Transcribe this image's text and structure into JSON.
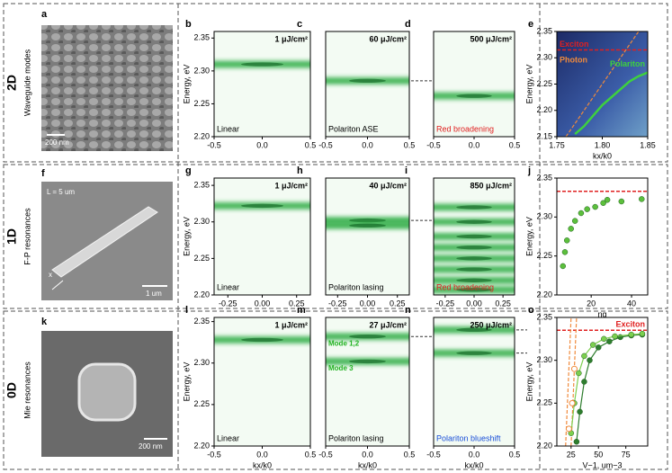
{
  "rows": [
    {
      "label": "2D",
      "subtitle": "Waveguide modes"
    },
    {
      "label": "1D",
      "subtitle": "F-P resonances"
    },
    {
      "label": "0D",
      "subtitle": "Mie resonances"
    }
  ],
  "images": [
    {
      "letter": "a",
      "scale_bar": "200 nm"
    },
    {
      "letter": "f",
      "note": "L = 5 um",
      "scale_bar": "1 um",
      "axis": "x"
    },
    {
      "letter": "k",
      "scale_bar": "200 nm"
    }
  ],
  "chart_data": [
    {
      "type": "heatmap",
      "letter": "b",
      "fluence": "1 μJ/cm²",
      "caption": "Linear",
      "caption_color": "#000",
      "ylabel": "Energy, eV",
      "xlim": [
        -0.5,
        0.5
      ],
      "ylim": [
        2.2,
        2.36
      ],
      "xticks": [
        -0.5,
        {
          "value": 0,
          "label": "0.0"
        },
        0.5
      ],
      "yticks": [
        2.35,
        {
          "value": 2.3,
          "label": "2.30"
        },
        2.25,
        {
          "value": 2.2,
          "label": "2.20"
        }
      ],
      "bands": [
        2.31
      ]
    },
    {
      "type": "heatmap",
      "letter": "c",
      "fluence": "60 μJ/cm²",
      "caption": "Polariton ASE",
      "caption_color": "#000",
      "xlim": [
        -0.5,
        0.5
      ],
      "ylim": [
        2.2,
        2.36
      ],
      "xticks": [
        -0.5,
        {
          "value": 0,
          "label": "0.0"
        },
        0.5
      ],
      "bands": [
        2.285
      ]
    },
    {
      "type": "heatmap",
      "letter": "d",
      "fluence": "500 μJ/cm²",
      "caption": "Red broadening",
      "caption_color": "#e02020",
      "xlim": [
        -0.5,
        0.5
      ],
      "ylim": [
        2.2,
        2.36
      ],
      "xticks": [
        -0.5,
        {
          "value": 0,
          "label": "0.0"
        },
        0.5
      ],
      "bands": [
        2.262
      ]
    },
    {
      "type": "dispersion",
      "letter": "e",
      "ylabel": "Energy, eV",
      "xlabel": "kx/k0",
      "xlim": [
        1.75,
        1.85
      ],
      "ylim": [
        2.15,
        2.35
      ],
      "xticks": [
        1.75,
        {
          "value": 1.8,
          "label": "1.80"
        },
        1.85
      ],
      "yticks": [
        2.35,
        {
          "value": 2.3,
          "label": "2.30"
        },
        2.25,
        {
          "value": 2.2,
          "label": "2.20"
        },
        2.15
      ],
      "hlines": [
        {
          "y": 2.315,
          "color": "#e02020",
          "label": "Exciton"
        }
      ],
      "lines": [
        {
          "x": [
            1.76,
            1.84
          ],
          "y": [
            2.15,
            2.35
          ],
          "color": "#f08a3c",
          "label": "Photon"
        }
      ],
      "series": [
        {
          "name": "Polariton",
          "color": "#3ed13e",
          "x": [
            1.77,
            1.78,
            1.79,
            1.8,
            1.81,
            1.82,
            1.83,
            1.84,
            1.85
          ],
          "values": [
            2.155,
            2.17,
            2.19,
            2.21,
            2.225,
            2.24,
            2.255,
            2.265,
            2.272
          ]
        }
      ]
    },
    {
      "type": "heatmap",
      "letter": "g",
      "fluence": "1 μJ/cm²",
      "caption": "Linear",
      "caption_color": "#000",
      "ylabel": "Energy, eV",
      "xlim": [
        -0.35,
        0.35
      ],
      "ylim": [
        2.2,
        2.36
      ],
      "xticks": [
        -0.25,
        {
          "value": 0,
          "label": "0.00"
        },
        0.25
      ],
      "yticks": [
        2.35,
        {
          "value": 2.3,
          "label": "2.30"
        },
        2.25,
        {
          "value": 2.2,
          "label": "2.20"
        }
      ],
      "bands": [
        2.322
      ]
    },
    {
      "type": "heatmap",
      "letter": "h",
      "fluence": "40 μJ/cm²",
      "caption": "Polariton lasing",
      "caption_color": "#000",
      "xlim": [
        -0.35,
        0.35
      ],
      "ylim": [
        2.2,
        2.36
      ],
      "xticks": [
        -0.25,
        {
          "value": 0,
          "label": "0.00"
        },
        0.25
      ],
      "bands": [
        2.302,
        2.295
      ]
    },
    {
      "type": "heatmap",
      "letter": "i",
      "fluence": "850 μJ/cm²",
      "caption": "Red broadening",
      "caption_color": "#e02020",
      "xlim": [
        -0.35,
        0.35
      ],
      "ylim": [
        2.2,
        2.36
      ],
      "xticks": [
        -0.25,
        {
          "value": 0,
          "label": "0.00"
        },
        0.25
      ],
      "bands": [
        2.32,
        2.3,
        2.28,
        2.265,
        2.25,
        2.235,
        2.22,
        2.207
      ]
    },
    {
      "type": "scatter",
      "letter": "j",
      "ylabel": "Energy, eV",
      "xlabel": "ng",
      "xlim": [
        3,
        48
      ],
      "ylim": [
        2.2,
        2.35
      ],
      "xticks": [
        20,
        40
      ],
      "yticks": [
        2.35,
        {
          "value": 2.3,
          "label": "2.30"
        },
        2.25,
        {
          "value": 2.2,
          "label": "2.20"
        }
      ],
      "hlines": [
        {
          "y": 2.333,
          "color": "#e02020"
        }
      ],
      "series": [
        {
          "color": "#5cbf3c",
          "x": [
            6,
            7,
            8,
            10,
            12,
            15,
            18,
            22,
            26,
            28,
            35,
            45
          ],
          "values": [
            2.237,
            2.255,
            2.27,
            2.285,
            2.295,
            2.305,
            2.31,
            2.313,
            2.318,
            2.322,
            2.32,
            2.323
          ]
        }
      ]
    },
    {
      "type": "heatmap",
      "letter": "l",
      "fluence": "1 μJ/cm²",
      "caption": "Linear",
      "caption_color": "#000",
      "ylabel": "Energy, eV",
      "xlabel": "kx/k0",
      "xlim": [
        -0.5,
        0.5
      ],
      "ylim": [
        2.2,
        2.355
      ],
      "xticks": [
        -0.5,
        {
          "value": 0,
          "label": "0.0"
        },
        0.5
      ],
      "yticks": [
        2.35,
        {
          "value": 2.3,
          "label": "2.30"
        },
        2.25,
        {
          "value": 2.2,
          "label": "2.20"
        }
      ],
      "bands": [
        2.328
      ]
    },
    {
      "type": "heatmap",
      "letter": "m",
      "fluence": "27 μJ/cm²",
      "caption": "Polariton lasing",
      "caption_color": "#000",
      "xlabel": "kx/k0",
      "xlim": [
        -0.5,
        0.5
      ],
      "ylim": [
        2.2,
        2.355
      ],
      "xticks": [
        -0.5,
        {
          "value": 0,
          "label": "0.0"
        },
        0.5
      ],
      "bands": [
        2.332,
        2.302
      ],
      "band_labels": [
        "Mode 1,2",
        "Mode 3"
      ]
    },
    {
      "type": "heatmap",
      "letter": "n",
      "fluence": "250 μJ/cm²",
      "caption": "Polariton blueshift",
      "caption_color": "#1a4fd8",
      "xlabel": "kx/k0",
      "xlim": [
        -0.5,
        0.5
      ],
      "ylim": [
        2.2,
        2.355
      ],
      "xticks": [
        -0.5,
        {
          "value": 0,
          "label": "0.0"
        },
        0.5
      ],
      "bands": [
        2.34,
        2.312
      ]
    },
    {
      "type": "line",
      "letter": "o",
      "ylabel": "Energy, eV",
      "xlabel": "V−1, um−3",
      "xlim": [
        12,
        95
      ],
      "ylim": [
        2.2,
        2.35
      ],
      "xticks": [
        25,
        50,
        75
      ],
      "yticks": [
        2.35,
        {
          "value": 2.3,
          "label": "2.30"
        },
        2.25,
        {
          "value": 2.2,
          "label": "2.20"
        }
      ],
      "hlines": [
        {
          "y": 2.335,
          "color": "#e02020",
          "label": "Exciton"
        }
      ],
      "lines": [
        {
          "x": [
            20,
            25
          ],
          "y": [
            2.2,
            2.35
          ],
          "color": "#f08a3c"
        },
        {
          "x": [
            25,
            30
          ],
          "y": [
            2.2,
            2.35
          ],
          "color": "#f08a3c"
        }
      ],
      "series": [
        {
          "color": "#2e7d2e",
          "x": [
            30,
            33,
            37,
            42,
            50,
            60,
            70,
            80,
            90
          ],
          "values": [
            2.205,
            2.24,
            2.275,
            2.3,
            2.315,
            2.322,
            2.327,
            2.329,
            2.33
          ]
        },
        {
          "color": "#7ccf4f",
          "x": [
            25,
            28,
            32,
            37,
            45,
            55,
            65,
            80,
            90
          ],
          "values": [
            2.215,
            2.25,
            2.285,
            2.305,
            2.318,
            2.325,
            2.328,
            2.33,
            2.331
          ]
        },
        {
          "color": "#f08a3c",
          "marker": "open",
          "x": [
            23,
            26,
            28
          ],
          "values": [
            2.22,
            2.25,
            2.29
          ]
        }
      ]
    }
  ]
}
